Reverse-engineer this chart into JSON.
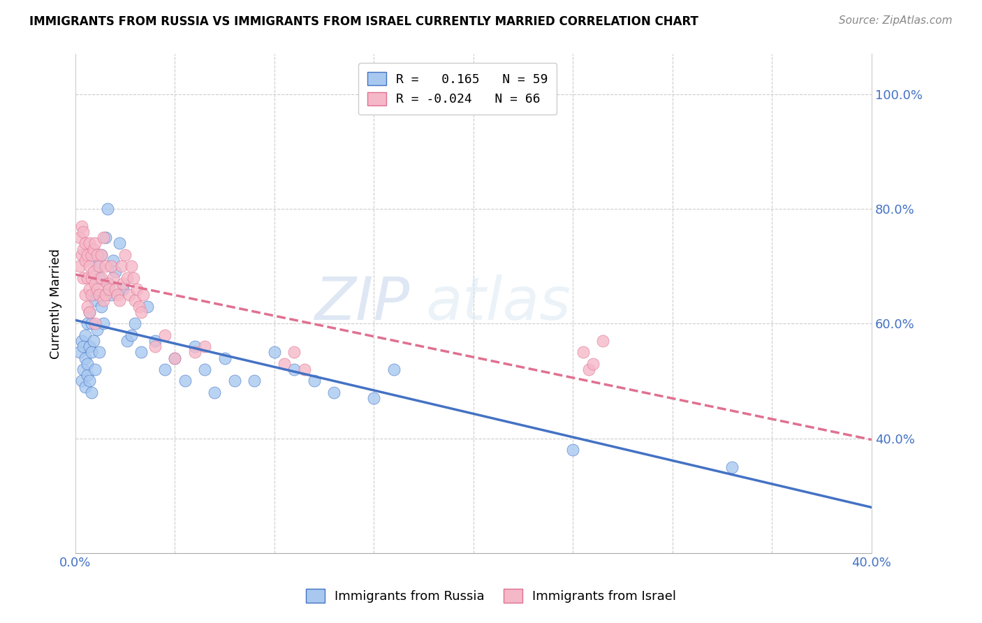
{
  "title": "IMMIGRANTS FROM RUSSIA VS IMMIGRANTS FROM ISRAEL CURRENTLY MARRIED CORRELATION CHART",
  "source": "Source: ZipAtlas.com",
  "ylabel": "Currently Married",
  "xmin": 0.0,
  "xmax": 0.4,
  "ymin": 0.2,
  "ymax": 1.07,
  "color_russia": "#a8c8f0",
  "color_israel": "#f5b8c8",
  "line_color_russia": "#4472c4",
  "line_color_israel": "#e07090",
  "watermark": "ZIPatlas",
  "russia_x": [
    0.002,
    0.003,
    0.003,
    0.004,
    0.004,
    0.005,
    0.005,
    0.005,
    0.006,
    0.006,
    0.006,
    0.007,
    0.007,
    0.007,
    0.008,
    0.008,
    0.008,
    0.009,
    0.009,
    0.01,
    0.01,
    0.011,
    0.011,
    0.012,
    0.012,
    0.013,
    0.013,
    0.014,
    0.015,
    0.016,
    0.017,
    0.018,
    0.019,
    0.02,
    0.022,
    0.024,
    0.026,
    0.028,
    0.03,
    0.033,
    0.036,
    0.04,
    0.045,
    0.05,
    0.055,
    0.06,
    0.065,
    0.07,
    0.075,
    0.08,
    0.09,
    0.1,
    0.11,
    0.12,
    0.13,
    0.15,
    0.16,
    0.25,
    0.33
  ],
  "russia_y": [
    0.55,
    0.5,
    0.57,
    0.52,
    0.56,
    0.54,
    0.49,
    0.58,
    0.51,
    0.53,
    0.6,
    0.56,
    0.62,
    0.5,
    0.55,
    0.6,
    0.48,
    0.57,
    0.65,
    0.52,
    0.64,
    0.59,
    0.7,
    0.55,
    0.68,
    0.63,
    0.72,
    0.6,
    0.75,
    0.8,
    0.67,
    0.65,
    0.71,
    0.69,
    0.74,
    0.66,
    0.57,
    0.58,
    0.6,
    0.55,
    0.63,
    0.57,
    0.52,
    0.54,
    0.5,
    0.56,
    0.52,
    0.48,
    0.54,
    0.5,
    0.5,
    0.55,
    0.52,
    0.5,
    0.48,
    0.47,
    0.52,
    0.38,
    0.35
  ],
  "israel_x": [
    0.002,
    0.002,
    0.003,
    0.003,
    0.004,
    0.004,
    0.004,
    0.005,
    0.005,
    0.005,
    0.006,
    0.006,
    0.006,
    0.007,
    0.007,
    0.007,
    0.007,
    0.008,
    0.008,
    0.008,
    0.009,
    0.009,
    0.01,
    0.01,
    0.01,
    0.011,
    0.011,
    0.012,
    0.012,
    0.013,
    0.013,
    0.014,
    0.014,
    0.015,
    0.015,
    0.016,
    0.017,
    0.018,
    0.019,
    0.02,
    0.021,
    0.022,
    0.023,
    0.024,
    0.025,
    0.026,
    0.027,
    0.028,
    0.029,
    0.03,
    0.031,
    0.032,
    0.033,
    0.034,
    0.04,
    0.045,
    0.05,
    0.06,
    0.065,
    0.105,
    0.11,
    0.115,
    0.255,
    0.258,
    0.26,
    0.265
  ],
  "israel_y": [
    0.75,
    0.7,
    0.77,
    0.72,
    0.73,
    0.68,
    0.76,
    0.71,
    0.65,
    0.74,
    0.72,
    0.68,
    0.63,
    0.74,
    0.7,
    0.66,
    0.62,
    0.72,
    0.68,
    0.65,
    0.73,
    0.69,
    0.67,
    0.74,
    0.6,
    0.72,
    0.66,
    0.7,
    0.65,
    0.72,
    0.68,
    0.75,
    0.64,
    0.7,
    0.65,
    0.67,
    0.66,
    0.7,
    0.68,
    0.66,
    0.65,
    0.64,
    0.7,
    0.67,
    0.72,
    0.68,
    0.65,
    0.7,
    0.68,
    0.64,
    0.66,
    0.63,
    0.62,
    0.65,
    0.56,
    0.58,
    0.54,
    0.55,
    0.56,
    0.53,
    0.55,
    0.52,
    0.55,
    0.52,
    0.53,
    0.57
  ],
  "ytick_positions": [
    0.4,
    0.6,
    0.8,
    1.0
  ],
  "ytick_labels": [
    "40.0%",
    "60.0%",
    "80.0%",
    "100.0%"
  ]
}
